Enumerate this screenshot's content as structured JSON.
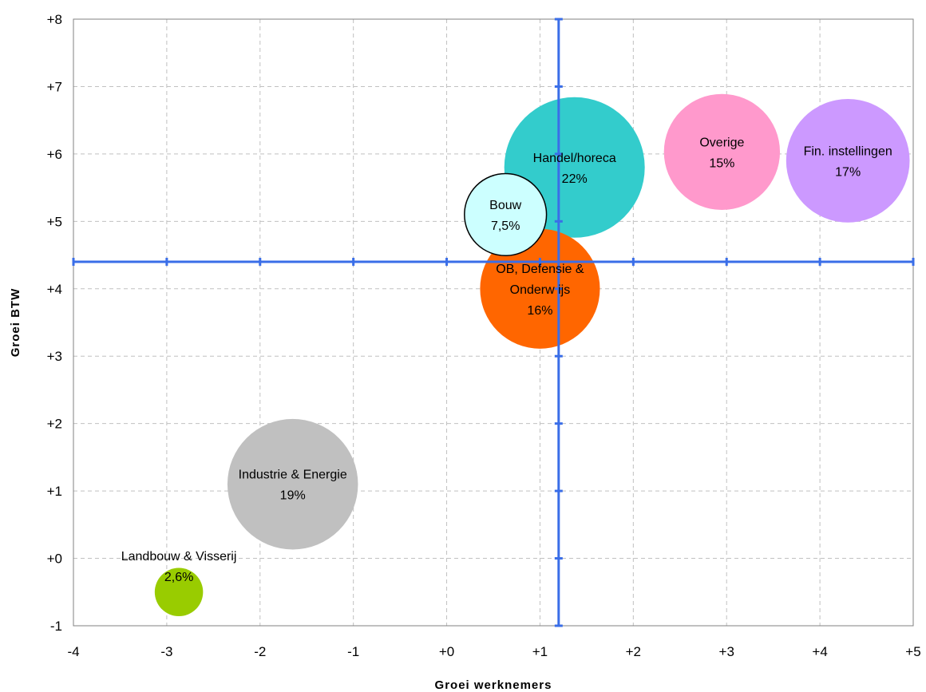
{
  "chart_data": {
    "type": "scatter",
    "subtype": "bubble",
    "title": "",
    "xlabel": "Groei werknemers",
    "ylabel": "Groei BTW",
    "xlim": [
      -4,
      5
    ],
    "ylim": [
      -1,
      8
    ],
    "x_ticks": [
      -4,
      -3,
      -2,
      -1,
      0,
      1,
      2,
      3,
      4,
      5
    ],
    "y_ticks": [
      -1,
      0,
      1,
      2,
      3,
      4,
      5,
      6,
      7,
      8
    ],
    "x_tick_labels": [
      "-4",
      "-3",
      "-2",
      "-1",
      "+0",
      "+1",
      "+2",
      "+3",
      "+4",
      "+5"
    ],
    "y_tick_labels": [
      "-1",
      "+0",
      "+1",
      "+2",
      "+3",
      "+4",
      "+5",
      "+6",
      "+7",
      "+8"
    ],
    "grid": true,
    "reference_lines": {
      "x": 1.2,
      "y": 4.4,
      "color": "#3a6ee8"
    },
    "series": [
      {
        "label": "Industrie & Energie",
        "share": "19%",
        "x": -1.65,
        "y": 1.1,
        "size": 19,
        "color": "#c0c0c0"
      },
      {
        "label": "Landbouw  & Visserij",
        "share": "2,6%",
        "x": -2.87,
        "y": -0.5,
        "size": 2.6,
        "color": "#99cc00"
      },
      {
        "label": "Handel/horeca",
        "share": "22%",
        "x": 1.37,
        "y": 5.8,
        "size": 22,
        "color": "#33cccc"
      },
      {
        "label": "Overige",
        "share": "15%",
        "x": 2.95,
        "y": 6.03,
        "size": 15,
        "color": "#ff99cc"
      },
      {
        "label": "Fin. instellingen",
        "share": "17%",
        "x": 4.3,
        "y": 5.9,
        "size": 17,
        "color": "#cc99ff"
      },
      {
        "label": "OB, Defensie & Onderw ijs",
        "label_lines": [
          "OB, Defensie &",
          "Onderw ijs"
        ],
        "share": "16%",
        "x": 1.0,
        "y": 4.0,
        "size": 16,
        "color": "#ff6600"
      },
      {
        "label": "Bouw",
        "share": "7,5%",
        "x": 0.63,
        "y": 5.1,
        "size": 7.5,
        "color": "#ccffff",
        "outline": "#000000"
      }
    ]
  }
}
